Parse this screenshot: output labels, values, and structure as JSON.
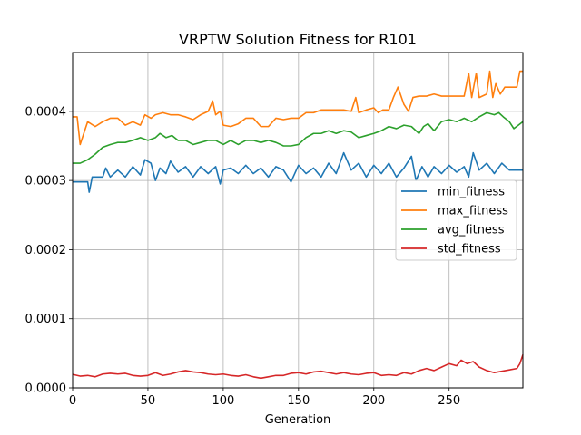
{
  "chart_data": {
    "type": "line",
    "title": "VRPTW Solution Fitness for R101",
    "xlabel": "Generation",
    "ylabel": "",
    "xlim": [
      0,
      299
    ],
    "ylim": [
      0,
      0.000485
    ],
    "xticks": [
      0,
      50,
      100,
      150,
      200,
      250
    ],
    "yticks": [
      0,
      0.0001,
      0.0002,
      0.0003,
      0.0004
    ],
    "ytick_labels": [
      "0.0000",
      "0.0001",
      "0.0002",
      "0.0003",
      "0.0004"
    ],
    "grid": true,
    "legend_position": "center-right",
    "series": [
      {
        "name": "min_fitness",
        "color": "#1f77b4",
        "points": [
          [
            0,
            0.000298
          ],
          [
            5,
            0.000298
          ],
          [
            10,
            0.000298
          ],
          [
            11,
            0.000283
          ],
          [
            13,
            0.000305
          ],
          [
            20,
            0.000305
          ],
          [
            22,
            0.000318
          ],
          [
            25,
            0.000305
          ],
          [
            30,
            0.000315
          ],
          [
            35,
            0.000305
          ],
          [
            40,
            0.00032
          ],
          [
            45,
            0.000308
          ],
          [
            48,
            0.00033
          ],
          [
            52,
            0.000325
          ],
          [
            55,
            0.0003
          ],
          [
            58,
            0.000318
          ],
          [
            62,
            0.00031
          ],
          [
            65,
            0.000328
          ],
          [
            70,
            0.000312
          ],
          [
            75,
            0.00032
          ],
          [
            80,
            0.000305
          ],
          [
            85,
            0.00032
          ],
          [
            90,
            0.00031
          ],
          [
            95,
            0.00032
          ],
          [
            98,
            0.000295
          ],
          [
            100,
            0.000315
          ],
          [
            105,
            0.000318
          ],
          [
            110,
            0.00031
          ],
          [
            115,
            0.000322
          ],
          [
            120,
            0.00031
          ],
          [
            125,
            0.000318
          ],
          [
            130,
            0.000305
          ],
          [
            135,
            0.00032
          ],
          [
            140,
            0.000315
          ],
          [
            145,
            0.000298
          ],
          [
            150,
            0.000322
          ],
          [
            155,
            0.00031
          ],
          [
            160,
            0.000318
          ],
          [
            165,
            0.000305
          ],
          [
            170,
            0.000325
          ],
          [
            175,
            0.00031
          ],
          [
            180,
            0.00034
          ],
          [
            185,
            0.000315
          ],
          [
            190,
            0.000325
          ],
          [
            195,
            0.000305
          ],
          [
            200,
            0.000322
          ],
          [
            205,
            0.00031
          ],
          [
            210,
            0.000325
          ],
          [
            215,
            0.000305
          ],
          [
            220,
            0.000318
          ],
          [
            225,
            0.000335
          ],
          [
            228,
            0.0003
          ],
          [
            232,
            0.00032
          ],
          [
            236,
            0.000305
          ],
          [
            240,
            0.00032
          ],
          [
            245,
            0.00031
          ],
          [
            250,
            0.000322
          ],
          [
            255,
            0.000312
          ],
          [
            260,
            0.00032
          ],
          [
            263,
            0.000305
          ],
          [
            266,
            0.00034
          ],
          [
            270,
            0.000315
          ],
          [
            275,
            0.000325
          ],
          [
            280,
            0.00031
          ],
          [
            285,
            0.000325
          ],
          [
            290,
            0.000315
          ],
          [
            295,
            0.000315
          ],
          [
            299,
            0.000315
          ]
        ]
      },
      {
        "name": "max_fitness",
        "color": "#ff7f0e",
        "points": [
          [
            0,
            0.000392
          ],
          [
            3,
            0.000392
          ],
          [
            5,
            0.000352
          ],
          [
            8,
            0.000372
          ],
          [
            10,
            0.000385
          ],
          [
            15,
            0.000378
          ],
          [
            20,
            0.000385
          ],
          [
            25,
            0.00039
          ],
          [
            30,
            0.00039
          ],
          [
            35,
            0.00038
          ],
          [
            40,
            0.000385
          ],
          [
            45,
            0.00038
          ],
          [
            48,
            0.000395
          ],
          [
            52,
            0.00039
          ],
          [
            55,
            0.000395
          ],
          [
            60,
            0.000398
          ],
          [
            65,
            0.000395
          ],
          [
            70,
            0.000395
          ],
          [
            75,
            0.000392
          ],
          [
            80,
            0.000388
          ],
          [
            85,
            0.000395
          ],
          [
            90,
            0.0004
          ],
          [
            93,
            0.000415
          ],
          [
            95,
            0.000395
          ],
          [
            98,
            0.0004
          ],
          [
            100,
            0.00038
          ],
          [
            105,
            0.000378
          ],
          [
            110,
            0.000382
          ],
          [
            115,
            0.00039
          ],
          [
            120,
            0.00039
          ],
          [
            125,
            0.000378
          ],
          [
            130,
            0.000378
          ],
          [
            135,
            0.00039
          ],
          [
            140,
            0.000388
          ],
          [
            145,
            0.00039
          ],
          [
            150,
            0.00039
          ],
          [
            155,
            0.000398
          ],
          [
            160,
            0.000398
          ],
          [
            165,
            0.000402
          ],
          [
            170,
            0.000402
          ],
          [
            175,
            0.000402
          ],
          [
            180,
            0.000402
          ],
          [
            185,
            0.0004
          ],
          [
            188,
            0.00042
          ],
          [
            190,
            0.000398
          ],
          [
            195,
            0.000402
          ],
          [
            200,
            0.000405
          ],
          [
            203,
            0.000398
          ],
          [
            206,
            0.000402
          ],
          [
            210,
            0.000402
          ],
          [
            213,
            0.00042
          ],
          [
            216,
            0.000435
          ],
          [
            220,
            0.00041
          ],
          [
            223,
            0.0004
          ],
          [
            226,
            0.00042
          ],
          [
            230,
            0.000422
          ],
          [
            235,
            0.000422
          ],
          [
            240,
            0.000425
          ],
          [
            245,
            0.000422
          ],
          [
            250,
            0.000422
          ],
          [
            255,
            0.000422
          ],
          [
            260,
            0.000422
          ],
          [
            263,
            0.000455
          ],
          [
            265,
            0.00042
          ],
          [
            268,
            0.000455
          ],
          [
            270,
            0.00042
          ],
          [
            275,
            0.000425
          ],
          [
            277,
            0.000458
          ],
          [
            279,
            0.00042
          ],
          [
            281,
            0.00044
          ],
          [
            284,
            0.000425
          ],
          [
            287,
            0.000435
          ],
          [
            290,
            0.000435
          ],
          [
            295,
            0.000435
          ],
          [
            297,
            0.000458
          ],
          [
            299,
            0.000458
          ]
        ]
      },
      {
        "name": "avg_fitness",
        "color": "#2ca02c",
        "points": [
          [
            0,
            0.000325
          ],
          [
            5,
            0.000325
          ],
          [
            10,
            0.00033
          ],
          [
            15,
            0.000338
          ],
          [
            20,
            0.000348
          ],
          [
            25,
            0.000352
          ],
          [
            30,
            0.000355
          ],
          [
            35,
            0.000355
          ],
          [
            40,
            0.000358
          ],
          [
            45,
            0.000362
          ],
          [
            50,
            0.000358
          ],
          [
            55,
            0.000362
          ],
          [
            58,
            0.000368
          ],
          [
            62,
            0.000362
          ],
          [
            66,
            0.000365
          ],
          [
            70,
            0.000358
          ],
          [
            75,
            0.000358
          ],
          [
            80,
            0.000352
          ],
          [
            85,
            0.000355
          ],
          [
            90,
            0.000358
          ],
          [
            95,
            0.000358
          ],
          [
            100,
            0.000352
          ],
          [
            105,
            0.000358
          ],
          [
            110,
            0.000352
          ],
          [
            115,
            0.000358
          ],
          [
            120,
            0.000358
          ],
          [
            125,
            0.000355
          ],
          [
            130,
            0.000358
          ],
          [
            135,
            0.000355
          ],
          [
            140,
            0.00035
          ],
          [
            145,
            0.00035
          ],
          [
            150,
            0.000352
          ],
          [
            155,
            0.000362
          ],
          [
            160,
            0.000368
          ],
          [
            165,
            0.000368
          ],
          [
            170,
            0.000372
          ],
          [
            175,
            0.000368
          ],
          [
            180,
            0.000372
          ],
          [
            185,
            0.00037
          ],
          [
            190,
            0.000362
          ],
          [
            195,
            0.000365
          ],
          [
            200,
            0.000368
          ],
          [
            205,
            0.000372
          ],
          [
            210,
            0.000378
          ],
          [
            215,
            0.000375
          ],
          [
            220,
            0.00038
          ],
          [
            225,
            0.000378
          ],
          [
            230,
            0.000368
          ],
          [
            233,
            0.000378
          ],
          [
            236,
            0.000382
          ],
          [
            240,
            0.000372
          ],
          [
            245,
            0.000385
          ],
          [
            250,
            0.000388
          ],
          [
            255,
            0.000385
          ],
          [
            260,
            0.00039
          ],
          [
            265,
            0.000385
          ],
          [
            270,
            0.000392
          ],
          [
            275,
            0.000398
          ],
          [
            280,
            0.000395
          ],
          [
            283,
            0.000398
          ],
          [
            286,
            0.000392
          ],
          [
            290,
            0.000385
          ],
          [
            293,
            0.000375
          ],
          [
            296,
            0.00038
          ],
          [
            299,
            0.000385
          ]
        ]
      },
      {
        "name": "std_fitness",
        "color": "#d62728",
        "points": [
          [
            0,
            1.95e-05
          ],
          [
            5,
            1.7e-05
          ],
          [
            10,
            1.8e-05
          ],
          [
            15,
            1.6e-05
          ],
          [
            20,
            2e-05
          ],
          [
            25,
            2.1e-05
          ],
          [
            30,
            2e-05
          ],
          [
            35,
            2.1e-05
          ],
          [
            40,
            1.8e-05
          ],
          [
            45,
            1.7e-05
          ],
          [
            50,
            1.8e-05
          ],
          [
            55,
            2.2e-05
          ],
          [
            60,
            1.8e-05
          ],
          [
            65,
            2e-05
          ],
          [
            70,
            2.3e-05
          ],
          [
            75,
            2.5e-05
          ],
          [
            80,
            2.3e-05
          ],
          [
            85,
            2.2e-05
          ],
          [
            90,
            2e-05
          ],
          [
            95,
            1.9e-05
          ],
          [
            100,
            2e-05
          ],
          [
            105,
            1.8e-05
          ],
          [
            110,
            1.7e-05
          ],
          [
            115,
            1.9e-05
          ],
          [
            120,
            1.6e-05
          ],
          [
            125,
            1.4e-05
          ],
          [
            130,
            1.6e-05
          ],
          [
            135,
            1.8e-05
          ],
          [
            140,
            1.8e-05
          ],
          [
            145,
            2.1e-05
          ],
          [
            150,
            2.2e-05
          ],
          [
            155,
            2e-05
          ],
          [
            160,
            2.3e-05
          ],
          [
            165,
            2.4e-05
          ],
          [
            170,
            2.2e-05
          ],
          [
            175,
            2e-05
          ],
          [
            180,
            2.2e-05
          ],
          [
            185,
            2e-05
          ],
          [
            190,
            1.9e-05
          ],
          [
            195,
            2.1e-05
          ],
          [
            200,
            2.2e-05
          ],
          [
            205,
            1.8e-05
          ],
          [
            210,
            1.9e-05
          ],
          [
            215,
            1.8e-05
          ],
          [
            220,
            2.2e-05
          ],
          [
            225,
            2e-05
          ],
          [
            230,
            2.5e-05
          ],
          [
            235,
            2.8e-05
          ],
          [
            240,
            2.5e-05
          ],
          [
            245,
            3e-05
          ],
          [
            250,
            3.5e-05
          ],
          [
            255,
            3.2e-05
          ],
          [
            258,
            4e-05
          ],
          [
            262,
            3.5e-05
          ],
          [
            266,
            3.8e-05
          ],
          [
            270,
            3e-05
          ],
          [
            275,
            2.5e-05
          ],
          [
            280,
            2.2e-05
          ],
          [
            285,
            2.4e-05
          ],
          [
            290,
            2.6e-05
          ],
          [
            295,
            2.8e-05
          ],
          [
            297,
            3.5e-05
          ],
          [
            299,
            4.8e-05
          ]
        ]
      }
    ]
  }
}
